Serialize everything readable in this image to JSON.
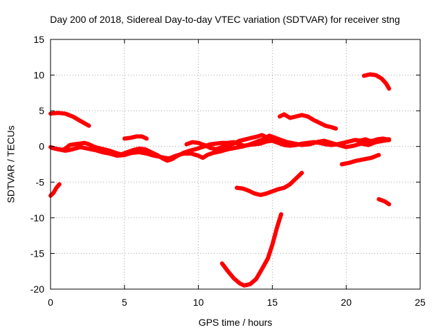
{
  "chart_data": {
    "type": "line",
    "title": "Day 200 of 2018, Sidereal Day-to-day VTEC variation (SDTVAR) for receiver stng",
    "xlabel": "GPS time / hours",
    "ylabel": "SDTVAR / TECUs",
    "xlim": [
      0,
      25
    ],
    "ylim": [
      -20,
      15
    ],
    "xticks": [
      0,
      5,
      10,
      15,
      20,
      25
    ],
    "yticks": [
      -20,
      -15,
      -10,
      -5,
      0,
      5,
      10,
      15
    ],
    "grid": true,
    "color": "#ff0000",
    "series": [
      {
        "points": [
          [
            0.0,
            4.6
          ],
          [
            0.5,
            4.7
          ],
          [
            1.0,
            4.6
          ],
          [
            1.5,
            4.2
          ],
          [
            2.0,
            3.6
          ],
          [
            2.6,
            2.9
          ]
        ]
      },
      {
        "points": [
          [
            0.0,
            -6.9
          ],
          [
            0.2,
            -6.5
          ],
          [
            0.4,
            -5.8
          ],
          [
            0.6,
            -5.3
          ]
        ]
      },
      {
        "points": [
          [
            0.0,
            -0.1
          ],
          [
            0.3,
            -0.3
          ],
          [
            0.6,
            -0.4
          ],
          [
            0.8,
            -0.5
          ],
          [
            1.0,
            -0.3
          ],
          [
            1.3,
            0.2
          ],
          [
            1.6,
            0.3
          ],
          [
            2.0,
            0.4
          ],
          [
            2.3,
            0.5
          ],
          [
            2.6,
            0.3
          ],
          [
            2.9,
            0.0
          ],
          [
            3.2,
            -0.2
          ],
          [
            3.6,
            -0.4
          ],
          [
            4.0,
            -0.6
          ],
          [
            4.4,
            -0.9
          ],
          [
            4.8,
            -1.1
          ],
          [
            5.2,
            -0.8
          ],
          [
            5.6,
            -0.5
          ],
          [
            6.0,
            -0.3
          ],
          [
            6.4,
            -0.4
          ],
          [
            6.8,
            -0.8
          ],
          [
            7.2,
            -1.2
          ],
          [
            7.6,
            -1.7
          ],
          [
            7.9,
            -2.0
          ],
          [
            8.2,
            -1.8
          ],
          [
            8.6,
            -1.3
          ],
          [
            9.0,
            -0.9
          ],
          [
            9.4,
            -0.6
          ],
          [
            9.8,
            -0.4
          ],
          [
            10.1,
            -0.2
          ],
          [
            10.4,
            0.0
          ],
          [
            10.8,
            0.3
          ],
          [
            11.2,
            0.4
          ],
          [
            11.6,
            0.5
          ],
          [
            12.0,
            0.5
          ],
          [
            12.4,
            0.6
          ],
          [
            12.8,
            0.3
          ],
          [
            13.1,
            0.1
          ],
          [
            13.4,
            0.2
          ],
          [
            13.8,
            0.3
          ],
          [
            14.2,
            0.4
          ],
          [
            14.6,
            0.7
          ],
          [
            15.0,
            0.8
          ],
          [
            15.4,
            0.5
          ],
          [
            15.8,
            0.2
          ],
          [
            16.2,
            0.1
          ],
          [
            16.6,
            0.2
          ],
          [
            17.0,
            0.4
          ],
          [
            17.4,
            0.5
          ],
          [
            17.8,
            0.6
          ],
          [
            18.2,
            0.5
          ],
          [
            18.6,
            0.3
          ],
          [
            19.0,
            0.2
          ],
          [
            19.4,
            0.3
          ],
          [
            19.8,
            0.5
          ],
          [
            20.2,
            0.7
          ],
          [
            20.6,
            0.9
          ],
          [
            21.0,
            0.8
          ],
          [
            21.4,
            0.7
          ],
          [
            21.8,
            0.8
          ],
          [
            22.2,
            0.9
          ],
          [
            22.6,
            1.0
          ],
          [
            22.9,
            1.0
          ]
        ]
      },
      {
        "points": [
          [
            0.1,
            -0.2
          ],
          [
            0.5,
            -0.4
          ],
          [
            1.0,
            -0.6
          ],
          [
            1.5,
            -0.4
          ],
          [
            2.0,
            -0.1
          ],
          [
            2.5,
            -0.3
          ],
          [
            3.0,
            -0.5
          ],
          [
            3.5,
            -0.8
          ],
          [
            4.0,
            -1.0
          ],
          [
            4.5,
            -1.3
          ],
          [
            5.0,
            -1.2
          ],
          [
            5.5,
            -0.9
          ],
          [
            6.0,
            -0.8
          ],
          [
            6.5,
            -1.0
          ],
          [
            7.0,
            -1.3
          ],
          [
            7.5,
            -1.5
          ],
          [
            8.0,
            -1.7
          ],
          [
            8.5,
            -1.3
          ],
          [
            9.0,
            -1.0
          ],
          [
            9.5,
            -1.0
          ],
          [
            10.0,
            -1.3
          ],
          [
            10.3,
            -1.6
          ],
          [
            10.6,
            -1.2
          ],
          [
            11.0,
            -0.9
          ],
          [
            11.5,
            -0.7
          ],
          [
            12.0,
            -0.4
          ],
          [
            12.5,
            -0.2
          ],
          [
            13.0,
            0.0
          ],
          [
            13.5,
            0.3
          ],
          [
            14.0,
            0.7
          ],
          [
            14.4,
            1.0
          ],
          [
            14.8,
            1.5
          ],
          [
            15.2,
            1.2
          ],
          [
            15.6,
            0.9
          ],
          [
            16.0,
            0.6
          ],
          [
            16.5,
            0.4
          ],
          [
            17.0,
            0.2
          ],
          [
            17.5,
            0.3
          ],
          [
            18.0,
            0.6
          ],
          [
            18.5,
            0.8
          ],
          [
            19.0,
            0.5
          ],
          [
            19.5,
            0.2
          ],
          [
            20.0,
            -0.1
          ],
          [
            20.5,
            0.1
          ],
          [
            21.0,
            0.4
          ],
          [
            21.5,
            0.2
          ],
          [
            22.0,
            0.6
          ],
          [
            22.5,
            0.8
          ],
          [
            22.9,
            0.9
          ]
        ]
      },
      {
        "points": [
          [
            9.2,
            0.3
          ],
          [
            9.6,
            0.6
          ],
          [
            10.0,
            0.5
          ],
          [
            10.4,
            0.2
          ],
          [
            10.8,
            -0.2
          ],
          [
            11.2,
            -0.4
          ],
          [
            11.6,
            -0.1
          ],
          [
            12.0,
            0.1
          ],
          [
            12.4,
            0.4
          ],
          [
            12.8,
            0.8
          ],
          [
            13.2,
            1.0
          ],
          [
            13.6,
            1.2
          ],
          [
            14.0,
            1.4
          ],
          [
            14.3,
            1.6
          ],
          [
            14.6,
            1.3
          ],
          [
            15.0,
            1.0
          ],
          [
            15.4,
            0.8
          ]
        ]
      },
      {
        "points": [
          [
            5.0,
            1.1
          ],
          [
            5.4,
            1.2
          ],
          [
            5.8,
            1.4
          ],
          [
            6.2,
            1.4
          ],
          [
            6.5,
            1.1
          ]
        ]
      },
      {
        "points": [
          [
            15.5,
            4.2
          ],
          [
            15.8,
            4.5
          ],
          [
            16.2,
            4.0
          ],
          [
            16.6,
            4.2
          ],
          [
            17.0,
            4.4
          ],
          [
            17.4,
            4.2
          ],
          [
            17.8,
            3.7
          ],
          [
            18.2,
            3.3
          ],
          [
            18.6,
            2.9
          ],
          [
            19.0,
            2.7
          ],
          [
            19.3,
            2.5
          ]
        ]
      },
      {
        "points": [
          [
            12.6,
            -5.8
          ],
          [
            13.0,
            -5.9
          ],
          [
            13.4,
            -6.2
          ],
          [
            13.8,
            -6.6
          ],
          [
            14.2,
            -6.8
          ],
          [
            14.6,
            -6.6
          ],
          [
            15.0,
            -6.3
          ],
          [
            15.4,
            -6.0
          ],
          [
            15.8,
            -5.8
          ],
          [
            16.2,
            -5.3
          ],
          [
            16.6,
            -4.5
          ],
          [
            17.0,
            -3.7
          ]
        ]
      },
      {
        "points": [
          [
            11.6,
            -16.4
          ],
          [
            12.0,
            -17.5
          ],
          [
            12.4,
            -18.5
          ],
          [
            12.8,
            -19.2
          ],
          [
            13.1,
            -19.5
          ],
          [
            13.5,
            -19.3
          ],
          [
            13.9,
            -18.6
          ],
          [
            14.3,
            -17.2
          ],
          [
            14.7,
            -15.7
          ],
          [
            15.0,
            -13.8
          ],
          [
            15.3,
            -11.5
          ],
          [
            15.6,
            -9.5
          ]
        ]
      },
      {
        "points": [
          [
            19.7,
            -2.5
          ],
          [
            20.2,
            -2.3
          ],
          [
            20.7,
            -2.0
          ],
          [
            21.2,
            -1.8
          ],
          [
            21.7,
            -1.6
          ],
          [
            22.2,
            -1.2
          ]
        ]
      },
      {
        "points": [
          [
            20.9,
            0.8
          ],
          [
            21.3,
            1.0
          ],
          [
            21.7,
            0.7
          ],
          [
            22.1,
            1.0
          ],
          [
            22.5,
            1.1
          ],
          [
            22.9,
            0.9
          ]
        ]
      },
      {
        "points": [
          [
            21.2,
            9.9
          ],
          [
            21.6,
            10.1
          ],
          [
            22.0,
            10.0
          ],
          [
            22.4,
            9.5
          ],
          [
            22.7,
            8.8
          ],
          [
            22.9,
            8.1
          ]
        ]
      },
      {
        "points": [
          [
            22.2,
            -7.4
          ],
          [
            22.6,
            -7.7
          ],
          [
            22.9,
            -8.1
          ]
        ]
      }
    ]
  }
}
